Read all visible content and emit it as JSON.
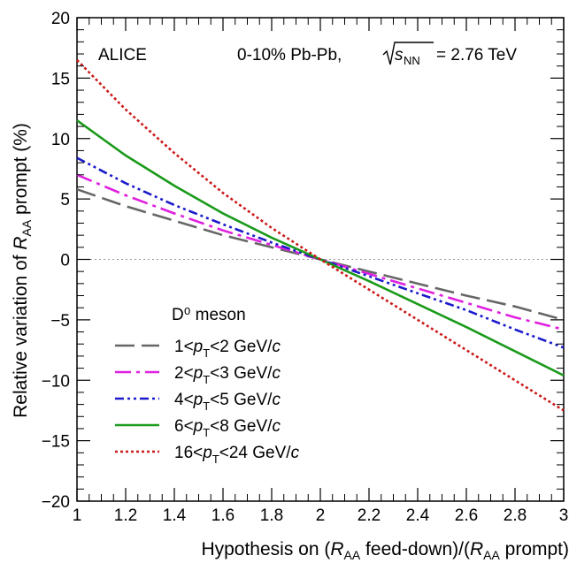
{
  "chart_data": {
    "type": "line",
    "xlabel": "Hypothesis on (R_AA feed-down)/(R_AA prompt)",
    "ylabel": "Relative variation of R_AA prompt (%)",
    "xlim": [
      1,
      3
    ],
    "ylim": [
      -20,
      20
    ],
    "x_ticks": [
      "1",
      "1.2",
      "1.4",
      "1.6",
      "1.8",
      "2",
      "2.2",
      "2.4",
      "2.6",
      "2.8",
      "3"
    ],
    "y_ticks": [
      "−20",
      "−15",
      "−10",
      "−5",
      "0",
      "5",
      "10",
      "15",
      "20"
    ],
    "annotations": {
      "experiment": "ALICE",
      "system": "0-10% Pb-Pb,",
      "energy": "= 2.76 TeV",
      "legend_title": "D⁰ meson"
    },
    "reference_line": {
      "y": 0,
      "style": "dotted",
      "color": "#999999"
    },
    "legend_placement": "lower-left",
    "series": [
      {
        "name": "1<pT<2 GeV/c",
        "pt_lo": "1",
        "pt_hi": "2",
        "color": "#666666",
        "dash": "long-dash",
        "x": [
          1.0,
          1.2,
          1.4,
          1.6,
          1.8,
          2.0,
          2.2,
          2.4,
          2.6,
          2.8,
          3.0
        ],
        "y": [
          5.8,
          4.4,
          3.2,
          2.0,
          1.0,
          0.0,
          -1.0,
          -2.0,
          -3.0,
          -3.9,
          -5.0
        ]
      },
      {
        "name": "2<pT<3 GeV/c",
        "pt_lo": "2",
        "pt_hi": "3",
        "color": "#e020e0",
        "dash": "dash-dot",
        "x": [
          1.0,
          1.2,
          1.4,
          1.6,
          1.8,
          2.0,
          2.2,
          2.4,
          2.6,
          2.8,
          3.0
        ],
        "y": [
          7.0,
          5.3,
          3.8,
          2.4,
          1.2,
          0.0,
          -1.2,
          -2.4,
          -3.6,
          -4.8,
          -5.8
        ]
      },
      {
        "name": "4<pT<5 GeV/c",
        "pt_lo": "4",
        "pt_hi": "5",
        "color": "#1a1acc",
        "dash": "dash-dot-dot",
        "x": [
          1.0,
          1.2,
          1.4,
          1.6,
          1.8,
          2.0,
          2.2,
          2.4,
          2.6,
          2.8,
          3.0
        ],
        "y": [
          8.4,
          6.3,
          4.5,
          2.9,
          1.4,
          0.0,
          -1.4,
          -2.8,
          -4.2,
          -5.8,
          -7.3
        ]
      },
      {
        "name": "6<pT<8 GeV/c",
        "pt_lo": "6",
        "pt_hi": "8",
        "color": "#1a9a1a",
        "dash": "solid",
        "x": [
          1.0,
          1.2,
          1.4,
          1.6,
          1.8,
          2.0,
          2.2,
          2.4,
          2.6,
          2.8,
          3.0
        ],
        "y": [
          11.5,
          8.6,
          6.1,
          3.8,
          1.8,
          0.0,
          -1.8,
          -3.7,
          -5.6,
          -7.6,
          -9.6
        ]
      },
      {
        "name": "16<pT<24 GeV/c",
        "pt_lo": "16",
        "pt_hi": "24",
        "color": "#cc1a1a",
        "dash": "dotted",
        "x": [
          1.0,
          1.2,
          1.4,
          1.6,
          1.8,
          2.0,
          2.2,
          2.4,
          2.6,
          2.8,
          3.0
        ],
        "y": [
          16.5,
          12.4,
          8.8,
          5.5,
          2.6,
          0.0,
          -2.5,
          -5.0,
          -7.5,
          -10.0,
          -12.5
        ]
      }
    ]
  }
}
